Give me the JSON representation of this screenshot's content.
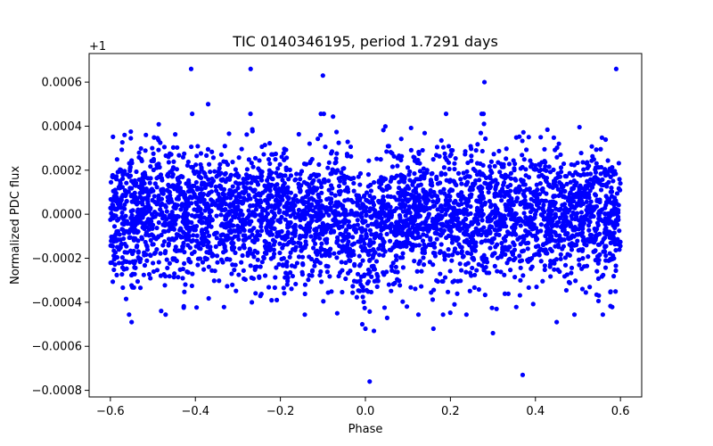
{
  "chart_data": {
    "type": "scatter",
    "title": "TIC 0140346195, period 1.7291 days",
    "xlabel": "Phase",
    "ylabel": "Normalized PDC flux",
    "y_offset_label": "+1",
    "xlim": [
      -0.65,
      0.65
    ],
    "ylim": [
      -0.00083,
      0.00073
    ],
    "xticks": [
      -0.6,
      -0.4,
      -0.2,
      0.0,
      0.2,
      0.4,
      0.6
    ],
    "xtick_labels": [
      "−0.6",
      "−0.4",
      "−0.2",
      "0.0",
      "0.2",
      "0.4",
      "0.6"
    ],
    "yticks": [
      -0.0008,
      -0.0006,
      -0.0004,
      -0.0002,
      0.0,
      0.0002,
      0.0004,
      0.0006
    ],
    "ytick_labels": [
      "−0.0008",
      "−0.0006",
      "−0.0004",
      "−0.0002",
      "0.0000",
      "0.0002",
      "0.0004",
      "0.0006"
    ],
    "grid": false,
    "marker_color": "#0000ff",
    "series": [
      {
        "name": "PDC flux",
        "x_range": [
          -0.6,
          0.6
        ],
        "n_points": 4000,
        "baseline": 0.0,
        "scatter_std": 0.00016,
        "transit": {
          "center": 0.0,
          "depth": 0.00012,
          "width": 0.025
        },
        "notable_points": [
          {
            "x": -0.41,
            "y": 0.00066
          },
          {
            "x": -0.27,
            "y": 0.00066
          },
          {
            "x": -0.1,
            "y": 0.00063
          },
          {
            "x": -0.37,
            "y": 0.0005
          },
          {
            "x": 0.28,
            "y": 0.0006
          },
          {
            "x": 0.59,
            "y": 0.00066
          },
          {
            "x": 0.01,
            "y": -0.00076
          },
          {
            "x": 0.37,
            "y": -0.00073
          },
          {
            "x": 0.3,
            "y": -0.00054
          },
          {
            "x": 0.16,
            "y": -0.00052
          },
          {
            "x": -0.55,
            "y": -0.00049
          },
          {
            "x": 0.45,
            "y": -0.00049
          },
          {
            "x": 0.0,
            "y": -0.00052
          },
          {
            "x": 0.02,
            "y": -0.00053
          }
        ]
      }
    ]
  }
}
